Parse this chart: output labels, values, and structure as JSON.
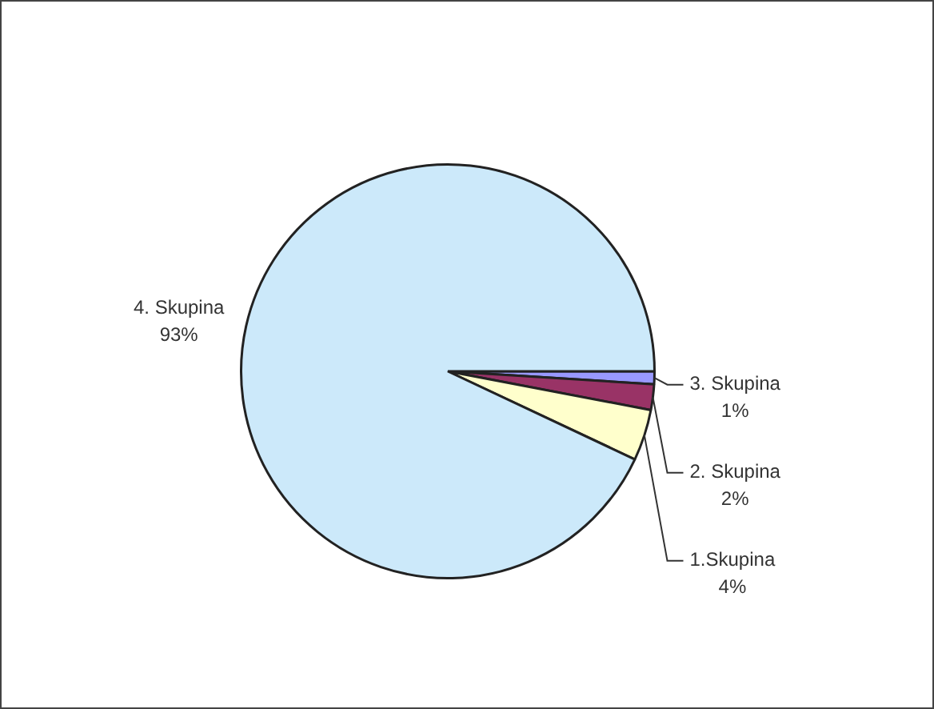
{
  "chart_data": {
    "type": "pie",
    "categories": [
      "3. Skupina",
      "2. Skupina",
      "1.Skupina",
      "4. Skupina"
    ],
    "values": [
      1,
      2,
      4,
      93
    ],
    "value_labels": [
      "1%",
      "2%",
      "4%",
      "93%"
    ],
    "colors": [
      "#9999ff",
      "#993366",
      "#ffffcc",
      "#cce9fa"
    ],
    "legend": false
  }
}
